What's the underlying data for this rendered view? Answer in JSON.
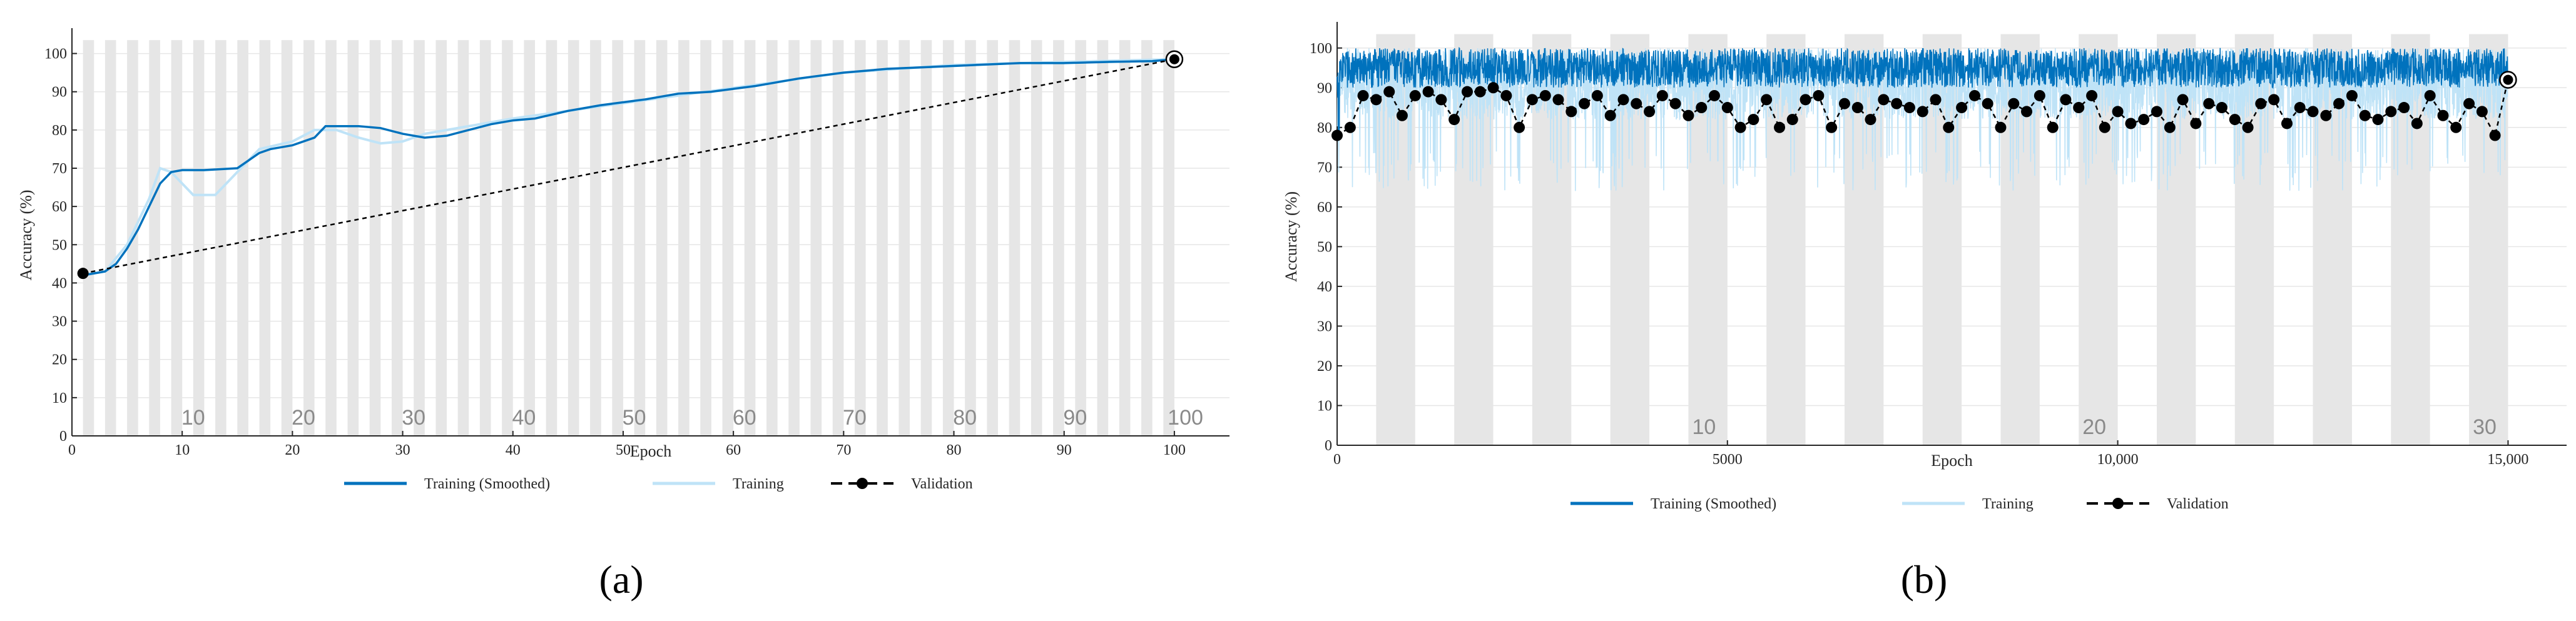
{
  "panels": [
    {
      "id": "a",
      "panel_label": "(a)",
      "legend": [
        "Training (Smoothed)",
        "Training",
        "Validation"
      ],
      "colors": {
        "smoothed": "#0072bd",
        "training": "#bfe3f7",
        "validation": "#000000",
        "band": "#e6e6e6"
      },
      "chart_data": {
        "type": "line",
        "xlabel": "Epoch",
        "ylabel": "Accuracy (%)",
        "xlim": [
          0,
          105
        ],
        "ylim": [
          0,
          105
        ],
        "xticks": [
          0,
          10,
          20,
          30,
          40,
          50,
          60,
          70,
          80,
          90,
          100
        ],
        "yticks": [
          0,
          10,
          20,
          30,
          40,
          50,
          60,
          70,
          80,
          90,
          100
        ],
        "x_tick_labels": [
          "0",
          "10",
          "20",
          "30",
          "40",
          "50",
          "60",
          "70",
          "80",
          "90",
          "100"
        ],
        "y_tick_labels": [
          "0",
          "10",
          "20",
          "30",
          "40",
          "50",
          "60",
          "70",
          "80",
          "90",
          "100"
        ],
        "epoch_labels": [
          "10",
          "20",
          "30",
          "40",
          "50",
          "60",
          "70",
          "80",
          "90",
          "100"
        ],
        "epoch_label_x": [
          11,
          21,
          31,
          41,
          51,
          61,
          71,
          81,
          91,
          101
        ],
        "band_width": 1,
        "grid": true,
        "legend_position": "bottom",
        "series": [
          {
            "name": "Training (Smoothed)",
            "style": "solid",
            "x": [
              1,
              2,
              3,
              4,
              5,
              6,
              7,
              8,
              9,
              10,
              12,
              15,
              17,
              18,
              20,
              22,
              23,
              26,
              28,
              30,
              32,
              34,
              36,
              38,
              40,
              42,
              45,
              48,
              52,
              55,
              58,
              62,
              66,
              70,
              74,
              78,
              82,
              86,
              90,
              94,
              98,
              100
            ],
            "y": [
              42,
              42.5,
              43,
              45,
              49,
              54,
              60,
              66,
              69,
              69.5,
              69.5,
              70,
              74,
              75,
              76,
              78,
              81,
              81,
              80.5,
              79,
              78,
              78.5,
              80,
              81.5,
              82.5,
              83,
              85,
              86.5,
              88,
              89.5,
              90,
              91.5,
              93.5,
              95,
              96,
              96.5,
              97,
              97.5,
              97.5,
              97.8,
              98,
              98.5
            ]
          },
          {
            "name": "Training",
            "style": "solid",
            "x": [
              1,
              3,
              5,
              7,
              8,
              9,
              10,
              11,
              13,
              15,
              17,
              20,
              22,
              24,
              26,
              28,
              30,
              32,
              34,
              36,
              40,
              50,
              60,
              70,
              80,
              90,
              100
            ],
            "y": [
              42,
              43,
              50,
              62,
              70,
              69,
              66,
              63,
              63,
              69,
              75,
              77,
              80,
              80,
              78,
              76.5,
              77,
              79,
              80,
              81,
              83,
              87,
              91,
              95,
              97,
              97.8,
              98.5
            ]
          },
          {
            "name": "Validation",
            "style": "dashed",
            "marker": "circle",
            "x": [
              1,
              100
            ],
            "y": [
              42.5,
              98.5
            ]
          }
        ]
      }
    },
    {
      "id": "b",
      "panel_label": "(b)",
      "legend": [
        "Training (Smoothed)",
        "Training",
        "Validation"
      ],
      "colors": {
        "smoothed": "#0072bd",
        "training": "#bfe3f7",
        "validation": "#000000",
        "band": "#e6e6e6"
      },
      "chart_data": {
        "type": "line",
        "xlabel": "Epoch",
        "ylabel": "Accuracy (%)",
        "xlim": [
          0,
          15750
        ],
        "ylim": [
          0,
          105
        ],
        "xticks": [
          0,
          5000,
          10000,
          15000
        ],
        "yticks": [
          0,
          10,
          20,
          30,
          40,
          50,
          60,
          70,
          80,
          90,
          100
        ],
        "x_tick_labels": [
          "0",
          "5000",
          "10,000",
          "15,000"
        ],
        "y_tick_labels": [
          "0",
          "10",
          "20",
          "30",
          "40",
          "50",
          "60",
          "70",
          "80",
          "90",
          "100"
        ],
        "epoch_labels": [
          "10",
          "20",
          "30"
        ],
        "epoch_label_x": [
          4700,
          9700,
          14700
        ],
        "band_width": 500,
        "grid": true,
        "legend_position": "bottom",
        "series": [
          {
            "name": "Training (Smoothed)",
            "style": "solid",
            "range": [
              88,
              100
            ],
            "x": [
              0,
              15000
            ],
            "y": [
              94,
              94
            ]
          },
          {
            "name": "Training",
            "style": "solid",
            "range": [
              70,
              100
            ],
            "x": [
              0,
              15000
            ],
            "y": [
              88,
              88
            ]
          },
          {
            "name": "Validation",
            "style": "dashed",
            "marker": "circle",
            "x": [
              0,
              167,
              333,
              500,
              667,
              833,
              1000,
              1167,
              1333,
              1500,
              1667,
              1833,
              2000,
              2167,
              2333,
              2500,
              2667,
              2833,
              3000,
              3167,
              3333,
              3500,
              3667,
              3833,
              4000,
              4167,
              4333,
              4500,
              4667,
              4833,
              5000,
              5167,
              5333,
              5500,
              5667,
              5833,
              6000,
              6167,
              6333,
              6500,
              6667,
              6833,
              7000,
              7167,
              7333,
              7500,
              7667,
              7833,
              8000,
              8167,
              8333,
              8500,
              8667,
              8833,
              9000,
              9167,
              9333,
              9500,
              9667,
              9833,
              10000,
              10167,
              10333,
              10500,
              10667,
              10833,
              11000,
              11167,
              11333,
              11500,
              11667,
              11833,
              12000,
              12167,
              12333,
              12500,
              12667,
              12833,
              13000,
              13167,
              13333,
              13500,
              13667,
              13833,
              14000,
              14167,
              14333,
              14500,
              14667,
              14833,
              15000
            ],
            "y": [
              78,
              80,
              88,
              87,
              89,
              83,
              88,
              89,
              87,
              82,
              89,
              89,
              90,
              88,
              80,
              87,
              88,
              87,
              84,
              86,
              88,
              83,
              87,
              86,
              84,
              88,
              86,
              83,
              85,
              88,
              85,
              80,
              82,
              87,
              80,
              82,
              87,
              88,
              80,
              86,
              85,
              82,
              87,
              86,
              85,
              84,
              87,
              80,
              85,
              88,
              86,
              80,
              86,
              84,
              88,
              80,
              87,
              85,
              88,
              80,
              84,
              81,
              82,
              84,
              80,
              87,
              81,
              86,
              85,
              82,
              80,
              86,
              87,
              81,
              85,
              84,
              83,
              86,
              88,
              83,
              82,
              84,
              85,
              81,
              88,
              83,
              80,
              86,
              84,
              78,
              92
            ]
          }
        ]
      }
    }
  ]
}
